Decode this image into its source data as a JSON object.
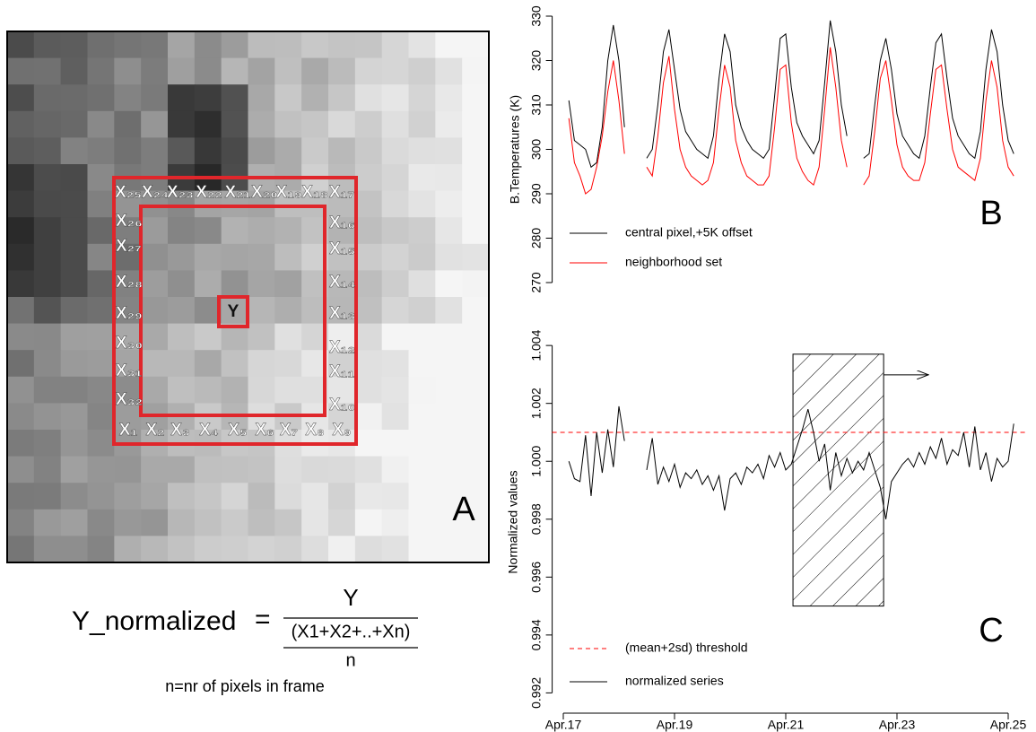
{
  "panel_a": {
    "panel_label": "A",
    "center": "Y",
    "top": [
      "X₂₅",
      "X₂₄",
      "X₂₃",
      "X₂₂",
      "X₂₁",
      "X₂₀",
      "X₁₉",
      "X₁₈",
      "X₁₇"
    ],
    "right": [
      "X₁₆",
      "X₁₅",
      "X₁₄",
      "X₁₃",
      "X₁₂",
      "X₁₁",
      "X₁₀"
    ],
    "bottom": [
      "X₁",
      "X₂",
      "X₃",
      "X₄",
      "X₅",
      "X₆",
      "X₇",
      "X₈",
      "X₉"
    ],
    "left": [
      "X₂₆",
      "X₂₇",
      "X₂₈",
      "X₂₉",
      "X₃₀",
      "X₃₁",
      "X₃₂"
    ],
    "formula": {
      "lhs": "Y_normalized",
      "eq": "=",
      "numerator": "Y",
      "sum": "(X1+X2+..+Xn)",
      "n": "n",
      "note": "n=nr of pixels in frame"
    }
  },
  "chart_data": [
    {
      "type": "line",
      "panel_label": "B",
      "ylabel": "B.Temperatures (K)",
      "xlim": [
        16.8,
        25.3
      ],
      "ylim": [
        270,
        330
      ],
      "yticks": [
        270,
        280,
        290,
        300,
        310,
        320,
        330
      ],
      "x": [
        17.1,
        17.2,
        17.3,
        17.4,
        17.5,
        17.6,
        17.7,
        17.8,
        17.9,
        18.0,
        18.1,
        18.2,
        18.3,
        18.4,
        18.5,
        18.6,
        18.7,
        18.8,
        18.9,
        19.0,
        19.1,
        19.2,
        19.3,
        19.4,
        19.5,
        19.6,
        19.7,
        19.8,
        19.9,
        20.0,
        20.1,
        20.2,
        20.3,
        20.4,
        20.5,
        20.6,
        20.7,
        20.8,
        20.9,
        21.0,
        21.1,
        21.2,
        21.3,
        21.4,
        21.5,
        21.6,
        21.7,
        21.8,
        21.9,
        22.0,
        22.1,
        22.2,
        22.3,
        22.4,
        22.5,
        22.6,
        22.7,
        22.8,
        22.9,
        23.0,
        23.1,
        23.2,
        23.3,
        23.4,
        23.5,
        23.6,
        23.7,
        23.8,
        23.9,
        24.0,
        24.1,
        24.2,
        24.3,
        24.4,
        24.5,
        24.6,
        24.7,
        24.8,
        24.9,
        25.0,
        25.1
      ],
      "series": [
        {
          "name": "central pixel,+5K offset",
          "color": "#000000",
          "values": [
            311,
            302,
            301,
            300,
            296,
            297,
            305,
            320,
            328,
            320,
            305,
            null,
            null,
            null,
            298,
            300,
            310,
            322,
            327,
            318,
            309,
            304,
            302,
            300,
            299,
            298,
            303,
            316,
            326,
            322,
            310,
            305,
            302,
            300,
            299,
            298,
            300,
            312,
            325,
            326,
            314,
            306,
            303,
            301,
            299,
            302,
            315,
            329,
            322,
            310,
            303,
            null,
            null,
            298,
            299,
            310,
            320,
            325,
            318,
            308,
            303,
            301,
            299,
            298,
            303,
            314,
            324,
            326,
            316,
            307,
            303,
            301,
            299,
            298,
            304,
            318,
            327,
            322,
            310,
            302,
            299
          ]
        },
        {
          "name": "neighborhood set",
          "color": "#ff0000",
          "values": [
            307,
            297,
            294,
            290,
            291,
            296,
            303,
            313,
            320,
            311,
            299,
            null,
            null,
            null,
            296,
            294,
            303,
            315,
            321,
            309,
            300,
            296,
            294,
            293,
            292,
            293,
            297,
            309,
            319,
            314,
            302,
            297,
            294,
            293,
            292,
            292,
            294,
            305,
            318,
            319,
            306,
            298,
            295,
            293,
            292,
            296,
            309,
            323,
            314,
            302,
            296,
            null,
            null,
            292,
            294,
            304,
            316,
            320,
            311,
            301,
            296,
            294,
            293,
            293,
            297,
            308,
            318,
            319,
            309,
            300,
            296,
            295,
            294,
            293,
            298,
            311,
            320,
            314,
            302,
            296,
            294
          ]
        }
      ]
    },
    {
      "type": "line",
      "panel_label": "C",
      "ylabel": "Normalized values",
      "xlim": [
        16.8,
        25.3
      ],
      "ylim": [
        0.9913,
        1.0045
      ],
      "xticks": [
        {
          "value": 17,
          "label": "Apr.17"
        },
        {
          "value": 19,
          "label": "Apr.19"
        },
        {
          "value": 21,
          "label": "Apr.21"
        },
        {
          "value": 23,
          "label": "Apr.23"
        },
        {
          "value": 25,
          "label": "Apr.25"
        }
      ],
      "yticks": [
        0.992,
        0.994,
        0.996,
        0.998,
        {
          "value": 1,
          "label": "1.000"
        },
        1.002,
        1.004
      ],
      "x": [
        17.1,
        17.2,
        17.3,
        17.4,
        17.5,
        17.6,
        17.7,
        17.8,
        17.9,
        18.0,
        18.1,
        18.2,
        18.3,
        18.4,
        18.5,
        18.6,
        18.7,
        18.8,
        18.9,
        19.0,
        19.1,
        19.2,
        19.3,
        19.4,
        19.5,
        19.6,
        19.7,
        19.8,
        19.9,
        20.0,
        20.1,
        20.2,
        20.3,
        20.4,
        20.5,
        20.6,
        20.7,
        20.8,
        20.9,
        21.0,
        21.1,
        21.2,
        21.3,
        21.4,
        21.5,
        21.6,
        21.7,
        21.8,
        21.9,
        22.0,
        22.1,
        22.2,
        22.3,
        22.4,
        22.5,
        22.6,
        22.7,
        22.8,
        22.9,
        23.0,
        23.1,
        23.2,
        23.3,
        23.4,
        23.5,
        23.6,
        23.7,
        23.8,
        23.9,
        24.0,
        24.1,
        24.2,
        24.3,
        24.4,
        24.5,
        24.6,
        24.7,
        24.8,
        24.9,
        25.0,
        25.1
      ],
      "hlines": [
        {
          "name": "(mean+2sd) threshold",
          "value": 1.001,
          "color": "#ff0000"
        }
      ],
      "series": [
        {
          "name": "normalized series",
          "color": "#000000",
          "values": [
            1.0,
            0.9994,
            0.9993,
            1.0009,
            0.9988,
            1.001,
            0.9996,
            1.0011,
            0.9998,
            1.0019,
            1.0007,
            null,
            null,
            null,
            0.9997,
            1.0008,
            0.9992,
            0.9998,
            0.9993,
            0.9999,
            0.9991,
            0.9996,
            0.9994,
            0.9997,
            0.9992,
            0.9995,
            0.999,
            0.9995,
            0.9983,
            0.9994,
            0.9996,
            0.9992,
            0.9998,
            0.9996,
            0.9999,
            0.9994,
            1.0002,
            0.9998,
            1.0003,
            0.9997,
            0.9999,
            1.0005,
            1.0011,
            1.0018,
            1.001,
            1.0,
            1.0006,
            0.999,
            1.0003,
            0.9995,
            1.0001,
            0.9996,
            1.0,
            0.9997,
            1.0003,
            0.9997,
            0.9991,
            0.998,
            0.9993,
            0.9996,
            0.9999,
            1.0001,
            0.9998,
            1.0003,
            0.9999,
            1.0005,
            1.0001,
            1.0008,
            0.9999,
            1.0004,
            1.0002,
            1.001,
            0.9998,
            1.0012,
            0.9997,
            1.0003,
            0.9993,
            1.0001,
            0.9998,
            1.0,
            1.0013
          ]
        }
      ],
      "highlight": {
        "x": [
          21.13,
          22.76
        ],
        "y": [
          0.995,
          1.0037
        ]
      }
    }
  ]
}
